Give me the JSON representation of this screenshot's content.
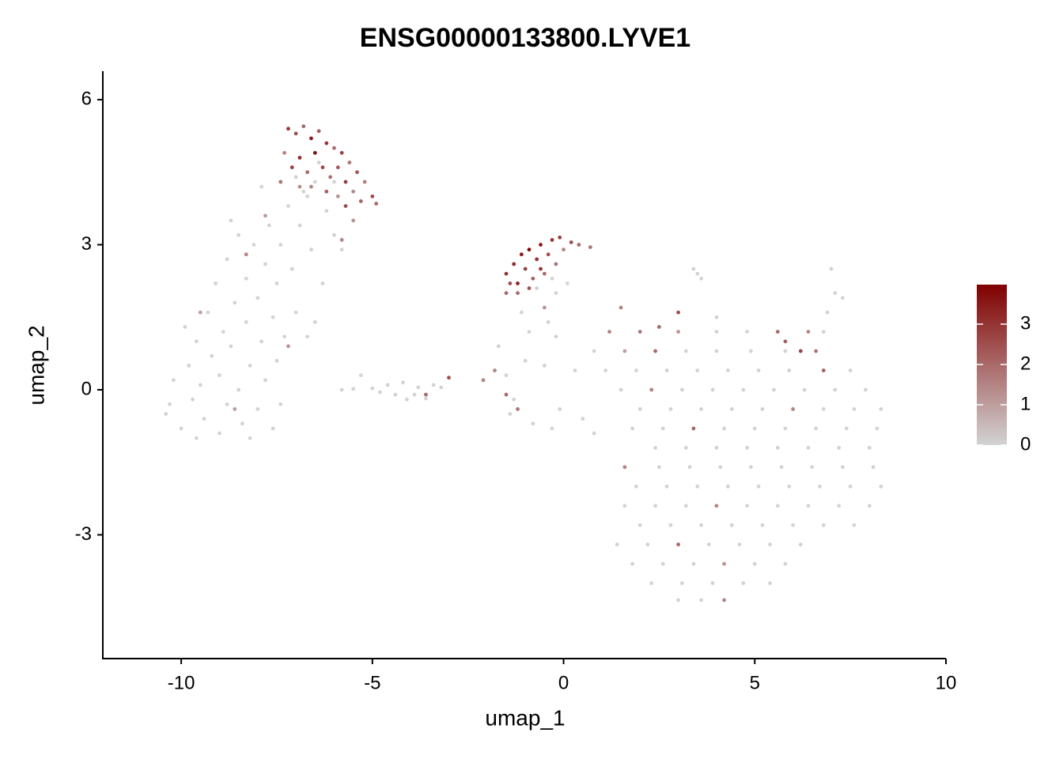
{
  "chart_data": {
    "type": "scatter",
    "title": "ENSG00000133800.LYVE1",
    "x_label": "umap_1",
    "y_label": "umap_2",
    "xlim": [
      -12.05,
      10
    ],
    "ylim": [
      -5.56,
      6.59
    ],
    "xticks": [
      -10,
      -5,
      0,
      5,
      10
    ],
    "yticks": [
      -3,
      0,
      3,
      6
    ],
    "colorbar": {
      "lim": [
        0,
        3.98
      ],
      "ticks": [
        0,
        1,
        2,
        3
      ],
      "low": "#d3d3d3",
      "high": "#800000"
    },
    "points": [
      [
        -10.3,
        -0.3,
        0
      ],
      [
        -10.2,
        0.2,
        0
      ],
      [
        -10,
        -0.8,
        0
      ],
      [
        -9.8,
        0.5,
        0
      ],
      [
        -9.7,
        -0.2,
        0
      ],
      [
        -9.6,
        1.0,
        0
      ],
      [
        -9.5,
        0.1,
        0
      ],
      [
        -9.4,
        -0.6,
        0
      ],
      [
        -9.3,
        1.6,
        0
      ],
      [
        -9.2,
        0.7,
        0
      ],
      [
        -9.1,
        2.2,
        0
      ],
      [
        -9,
        -0.9,
        0
      ],
      [
        -9,
        0.3,
        0
      ],
      [
        -8.9,
        1.2,
        0
      ],
      [
        -8.8,
        2.7,
        0
      ],
      [
        -8.8,
        -0.3,
        0
      ],
      [
        -8.7,
        0.9,
        0
      ],
      [
        -8.6,
        1.8,
        0
      ],
      [
        -8.5,
        3.2,
        0
      ],
      [
        -8.5,
        0.0,
        0
      ],
      [
        -8.4,
        -0.7,
        0
      ],
      [
        -8.3,
        2.3,
        0
      ],
      [
        -8.3,
        1.4,
        0
      ],
      [
        -8.2,
        0.5,
        0
      ],
      [
        -8.1,
        3.0,
        0
      ],
      [
        -8.0,
        -0.4,
        0
      ],
      [
        -8.0,
        1.9,
        0
      ],
      [
        -7.9,
        1.0,
        0
      ],
      [
        -7.8,
        2.6,
        0
      ],
      [
        -7.8,
        0.2,
        0
      ],
      [
        -7.7,
        3.4,
        0
      ],
      [
        -7.6,
        -0.8,
        0
      ],
      [
        -7.6,
        1.5,
        0
      ],
      [
        -7.5,
        0.6,
        0
      ],
      [
        -7.5,
        2.2,
        0
      ],
      [
        -7.4,
        -0.3,
        0
      ],
      [
        -7.4,
        3.0,
        0
      ],
      [
        -7.3,
        1.1,
        0
      ],
      [
        -7.2,
        3.8,
        0
      ],
      [
        -7.1,
        2.5,
        0
      ],
      [
        -7.0,
        1.6,
        0
      ],
      [
        -6.9,
        3.4,
        0
      ],
      [
        -6.8,
        4.1,
        0
      ],
      [
        -6.6,
        2.9,
        0
      ],
      [
        -6.5,
        4.3,
        0
      ],
      [
        -6.3,
        2.2,
        0
      ],
      [
        -6.2,
        3.7,
        0
      ],
      [
        -6.0,
        3.2,
        0
      ],
      [
        -5.8,
        2.9,
        0
      ],
      [
        -6.5,
        1.4,
        0
      ],
      [
        -9.9,
        1.3,
        0
      ],
      [
        -10.4,
        -0.5,
        0
      ],
      [
        -9.6,
        -1.0,
        0
      ],
      [
        -8.7,
        3.5,
        0
      ],
      [
        -7.9,
        4.2,
        0
      ],
      [
        -7.4,
        4.3,
        0
      ],
      [
        -8.2,
        -1.0,
        0
      ],
      [
        -6.7,
        1.1,
        0
      ],
      [
        -8.3,
        2.8,
        1.5
      ],
      [
        -9.5,
        1.6,
        1
      ],
      [
        -7.2,
        0.9,
        1.2
      ],
      [
        -8.6,
        -0.4,
        1
      ],
      [
        -7.2,
        5.4,
        3
      ],
      [
        -7.0,
        5.3,
        2.5
      ],
      [
        -6.8,
        5.45,
        2
      ],
      [
        -6.6,
        5.2,
        3.5
      ],
      [
        -6.4,
        5.35,
        2.2
      ],
      [
        -6.2,
        5.1,
        3
      ],
      [
        -6.0,
        5.0,
        2
      ],
      [
        -5.8,
        4.9,
        2.8
      ],
      [
        -5.6,
        4.7,
        1.8
      ],
      [
        -5.4,
        4.5,
        2.4
      ],
      [
        -5.2,
        4.3,
        1.6
      ],
      [
        -5.0,
        4.0,
        2.5
      ],
      [
        -4.9,
        3.85,
        2
      ],
      [
        -7.3,
        4.9,
        1.5
      ],
      [
        -7.1,
        4.6,
        2.8
      ],
      [
        -6.9,
        4.8,
        3.2
      ],
      [
        -6.7,
        4.5,
        2
      ],
      [
        -6.5,
        4.9,
        3.8
      ],
      [
        -6.3,
        4.6,
        2.6
      ],
      [
        -6.1,
        4.4,
        1.9
      ],
      [
        -5.9,
        4.6,
        2.3
      ],
      [
        -5.7,
        4.3,
        2.9
      ],
      [
        -5.5,
        4.1,
        1.4
      ],
      [
        -5.3,
        3.9,
        2.1
      ],
      [
        -6.6,
        4.2,
        1.5
      ],
      [
        -6.2,
        4.1,
        2.2
      ],
      [
        -5.9,
        4.0,
        1.2
      ],
      [
        -5.7,
        3.8,
        2.6
      ],
      [
        -7.4,
        4.3,
        1.8
      ],
      [
        -6.9,
        4.2,
        1.3
      ],
      [
        -6.4,
        4.7,
        0
      ],
      [
        -6.0,
        4.3,
        0
      ],
      [
        -5.5,
        3.5,
        1.2
      ],
      [
        -5.8,
        3.1,
        1.5
      ],
      [
        -7.8,
        3.6,
        1.1
      ],
      [
        -7.0,
        4.4,
        0
      ],
      [
        -6.7,
        4.0,
        0
      ],
      [
        -5.8,
        0,
        0
      ],
      [
        -5.5,
        0.02,
        0
      ],
      [
        -5.0,
        0.03,
        0
      ],
      [
        -4.8,
        -0.05,
        0
      ],
      [
        -4.6,
        0.1,
        0
      ],
      [
        -4.4,
        -0.1,
        0
      ],
      [
        -4.2,
        0.15,
        0
      ],
      [
        -4.1,
        -0.2,
        0
      ],
      [
        -3.9,
        -0.1,
        0
      ],
      [
        -3.8,
        0.05,
        0
      ],
      [
        -3.6,
        -0.18,
        0
      ],
      [
        -3.4,
        0.1,
        0
      ],
      [
        -3.2,
        0.05,
        0
      ],
      [
        -5.3,
        0.3,
        0
      ],
      [
        -3.6,
        -0.1,
        2
      ],
      [
        -3.0,
        0.25,
        2.5
      ],
      [
        -1.5,
        2.4,
        3
      ],
      [
        -1.4,
        2.2,
        2.5
      ],
      [
        -1.3,
        2.6,
        3.2
      ],
      [
        -1.2,
        2.0,
        2
      ],
      [
        -1.1,
        2.8,
        3.5
      ],
      [
        -1.0,
        2.5,
        2.8
      ],
      [
        -0.9,
        2.9,
        3.8
      ],
      [
        -0.8,
        2.3,
        2.2
      ],
      [
        -0.7,
        2.7,
        3
      ],
      [
        -0.6,
        3.0,
        3.5
      ],
      [
        -0.5,
        2.4,
        2
      ],
      [
        -0.4,
        2.8,
        2.5
      ],
      [
        -0.3,
        3.1,
        3
      ],
      [
        -0.2,
        2.6,
        1.8
      ],
      [
        -0.1,
        3.15,
        2.8
      ],
      [
        0,
        2.9,
        1.5
      ],
      [
        0.2,
        3.05,
        2.5
      ],
      [
        0.4,
        3.0,
        2
      ],
      [
        0.7,
        2.95,
        1.8
      ],
      [
        -1.2,
        2.2,
        3.3
      ],
      [
        -0.9,
        2.1,
        2.4
      ],
      [
        -0.6,
        2.5,
        3
      ],
      [
        -1.5,
        2.0,
        2
      ],
      [
        -0.7,
        2.1,
        0
      ],
      [
        -0.3,
        2.3,
        0
      ],
      [
        -0.2,
        2.0,
        0
      ],
      [
        -0.5,
        1.7,
        1.2
      ],
      [
        -1.1,
        1.6,
        0
      ],
      [
        -0.4,
        1.4,
        0
      ],
      [
        0.1,
        2.2,
        0
      ],
      [
        -1.7,
        0.9,
        0
      ],
      [
        -1.8,
        0.4,
        1.5
      ],
      [
        -1.5,
        0.3,
        0
      ],
      [
        -1.3,
        -0.2,
        0
      ],
      [
        -1.2,
        -0.4,
        1.8
      ],
      [
        -1.0,
        0.6,
        0
      ],
      [
        -0.8,
        -0.7,
        0
      ],
      [
        -0.5,
        0.5,
        0
      ],
      [
        -0.3,
        -0.8,
        0
      ],
      [
        -0.1,
        -0.4,
        0
      ],
      [
        -0.9,
        1.2,
        0
      ],
      [
        -0.2,
        1.1,
        0
      ],
      [
        0.3,
        0.4,
        0
      ],
      [
        0.5,
        -0.6,
        0
      ],
      [
        0.8,
        -0.9,
        0
      ],
      [
        -1.4,
        -0.5,
        0
      ],
      [
        -2.1,
        0.2,
        1.5
      ],
      [
        -1.5,
        -0.1,
        2
      ],
      [
        1.2,
        1.2,
        1.5
      ],
      [
        2.0,
        1.2,
        1.8
      ],
      [
        3.0,
        1.2,
        1.2
      ],
      [
        4.0,
        1.2,
        0
      ],
      [
        4.8,
        1.2,
        0
      ],
      [
        5.6,
        1.2,
        2
      ],
      [
        6.4,
        1.2,
        1.5
      ],
      [
        0.8,
        0.8,
        0
      ],
      [
        1.6,
        0.8,
        1
      ],
      [
        2.4,
        0.8,
        2
      ],
      [
        3.2,
        0.8,
        0
      ],
      [
        4.0,
        0.8,
        0
      ],
      [
        4.9,
        0.8,
        0
      ],
      [
        5.8,
        0.8,
        0
      ],
      [
        6.6,
        0.8,
        1.8
      ],
      [
        1.1,
        0.4,
        0
      ],
      [
        1.9,
        0.4,
        0
      ],
      [
        2.7,
        0.4,
        0
      ],
      [
        3.5,
        0.4,
        0
      ],
      [
        4.3,
        0.4,
        0
      ],
      [
        5.1,
        0.4,
        0
      ],
      [
        5.9,
        0.4,
        0
      ],
      [
        6.8,
        0.4,
        2.2
      ],
      [
        7.5,
        0.4,
        0
      ],
      [
        1.5,
        0,
        0
      ],
      [
        2.3,
        0,
        1.5
      ],
      [
        3.1,
        0,
        0
      ],
      [
        3.9,
        0,
        0
      ],
      [
        4.7,
        0,
        0
      ],
      [
        5.5,
        0,
        0
      ],
      [
        6.3,
        0,
        0
      ],
      [
        7.1,
        0,
        0
      ],
      [
        7.9,
        0,
        0
      ],
      [
        2.0,
        -0.4,
        0
      ],
      [
        2.8,
        -0.4,
        0
      ],
      [
        3.6,
        -0.4,
        0
      ],
      [
        4.4,
        -0.4,
        0
      ],
      [
        5.2,
        -0.4,
        0
      ],
      [
        6.0,
        -0.4,
        1.5
      ],
      [
        6.8,
        -0.4,
        0
      ],
      [
        7.6,
        -0.4,
        0
      ],
      [
        8.3,
        -0.4,
        0
      ],
      [
        1.8,
        -0.8,
        0
      ],
      [
        2.6,
        -0.8,
        0
      ],
      [
        3.4,
        -0.8,
        2
      ],
      [
        4.2,
        -0.8,
        0
      ],
      [
        5.0,
        -0.8,
        0
      ],
      [
        5.8,
        -0.8,
        0
      ],
      [
        6.6,
        -0.8,
        0
      ],
      [
        7.4,
        -0.8,
        0
      ],
      [
        8.2,
        -0.8,
        0
      ],
      [
        2.4,
        -1.2,
        0
      ],
      [
        3.2,
        -1.2,
        0
      ],
      [
        4.0,
        -1.2,
        0
      ],
      [
        4.8,
        -1.2,
        0
      ],
      [
        5.6,
        -1.2,
        0
      ],
      [
        6.4,
        -1.2,
        0
      ],
      [
        7.2,
        -1.2,
        0
      ],
      [
        8.0,
        -1.2,
        0
      ],
      [
        1.6,
        -1.6,
        1.5
      ],
      [
        2.5,
        -1.6,
        0
      ],
      [
        3.3,
        -1.6,
        0
      ],
      [
        4.1,
        -1.6,
        0
      ],
      [
        4.9,
        -1.6,
        0
      ],
      [
        5.7,
        -1.6,
        0
      ],
      [
        6.5,
        -1.6,
        0
      ],
      [
        7.3,
        -1.6,
        0
      ],
      [
        8.1,
        -1.6,
        0
      ],
      [
        1.9,
        -2.0,
        0
      ],
      [
        2.7,
        -2.0,
        0
      ],
      [
        3.5,
        -2.0,
        0
      ],
      [
        4.3,
        -2.0,
        0
      ],
      [
        5.1,
        -2.0,
        0
      ],
      [
        5.9,
        -2.0,
        0
      ],
      [
        6.7,
        -2.0,
        0
      ],
      [
        7.5,
        -2.0,
        0
      ],
      [
        8.3,
        -2.0,
        0
      ],
      [
        1.6,
        -2.4,
        0
      ],
      [
        2.4,
        -2.4,
        0
      ],
      [
        3.2,
        -2.4,
        0
      ],
      [
        4.0,
        -2.4,
        1.5
      ],
      [
        4.8,
        -2.4,
        0
      ],
      [
        5.6,
        -2.4,
        0
      ],
      [
        6.4,
        -2.4,
        0
      ],
      [
        7.2,
        -2.4,
        0
      ],
      [
        8.0,
        -2.4,
        0
      ],
      [
        2.0,
        -2.8,
        0
      ],
      [
        2.8,
        -2.8,
        0
      ],
      [
        3.6,
        -2.8,
        0
      ],
      [
        4.4,
        -2.8,
        0
      ],
      [
        5.2,
        -2.8,
        0
      ],
      [
        6.0,
        -2.8,
        0
      ],
      [
        6.8,
        -2.8,
        0
      ],
      [
        7.6,
        -2.8,
        0
      ],
      [
        1.4,
        -3.2,
        0
      ],
      [
        2.2,
        -3.2,
        0
      ],
      [
        3.0,
        -3.2,
        2
      ],
      [
        3.8,
        -3.2,
        0
      ],
      [
        4.6,
        -3.2,
        0
      ],
      [
        5.4,
        -3.2,
        0
      ],
      [
        6.2,
        -3.2,
        0
      ],
      [
        1.8,
        -3.6,
        0
      ],
      [
        2.6,
        -3.6,
        0
      ],
      [
        3.4,
        -3.6,
        0
      ],
      [
        4.2,
        -3.6,
        1.2
      ],
      [
        5.0,
        -3.6,
        0
      ],
      [
        5.8,
        -3.6,
        0
      ],
      [
        2.3,
        -4.0,
        0
      ],
      [
        3.1,
        -4.0,
        0
      ],
      [
        3.9,
        -4.0,
        0
      ],
      [
        4.7,
        -4.0,
        0
      ],
      [
        5.4,
        -4.0,
        0
      ],
      [
        3.0,
        -4.35,
        0
      ],
      [
        3.6,
        -4.35,
        0
      ],
      [
        4.2,
        -4.35,
        1.5
      ],
      [
        3.5,
        2.4,
        0
      ],
      [
        3.6,
        2.3,
        0
      ],
      [
        3.4,
        2.5,
        0
      ],
      [
        7.0,
        2.5,
        0
      ],
      [
        7.1,
        2.0,
        0
      ],
      [
        7.3,
        1.9,
        0
      ],
      [
        6.9,
        1.6,
        0
      ],
      [
        6.8,
        1.2,
        0
      ],
      [
        3.0,
        1.6,
        2.5
      ],
      [
        1.5,
        1.7,
        1.5
      ],
      [
        2.5,
        1.3,
        2
      ],
      [
        4.0,
        1.5,
        0
      ],
      [
        5.8,
        1.0,
        2.2
      ],
      [
        6.2,
        0.8,
        2.8
      ]
    ]
  }
}
